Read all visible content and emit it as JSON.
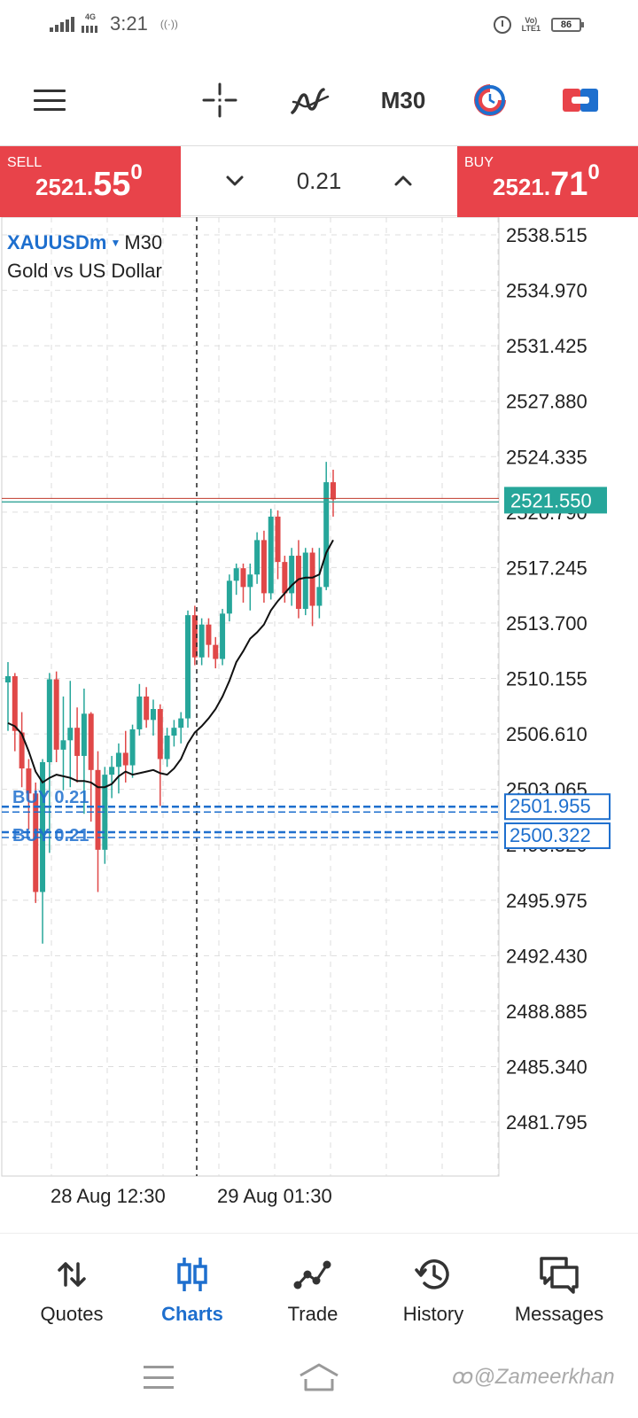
{
  "status_bar": {
    "network": "4G",
    "time": "3:21",
    "vibrate": "((·))",
    "volte": "VoLTE1",
    "battery": "86"
  },
  "toolbar": {
    "timeframe": "M30",
    "icons": [
      "menu-icon",
      "crosshair-icon",
      "indicators-icon",
      "timeframe",
      "objects-icon",
      "trade-panel-icon"
    ]
  },
  "price_bar": {
    "sell_label": "SELL",
    "sell_price_main": "2521.",
    "sell_price_big": "55",
    "sell_price_sup": "0",
    "buy_label": "BUY",
    "buy_price_main": "2521.",
    "buy_price_big": "71",
    "buy_price_sup": "0",
    "volume": "0.21",
    "color": "#e8434a"
  },
  "chart": {
    "symbol": "XAUUSDm",
    "timeframe": "M30",
    "description": "Gold vs US Dollar",
    "bid_label": "2521.550",
    "order_lines": [
      {
        "label": "BUY 0.21",
        "price_label": "2501.955"
      },
      {
        "label": "BUY 0.21",
        "price_label": "2500.322"
      }
    ],
    "x_labels": [
      "28 Aug 12:30",
      "29 Aug 01:30"
    ],
    "up_color": "#26a69a",
    "down_color": "#e04848",
    "order_color": "#1e6fce"
  },
  "chart_data": {
    "type": "candlestick",
    "title": "",
    "y_ticks": [
      2538.515,
      2534.97,
      2531.425,
      2527.88,
      2524.335,
      2520.79,
      2517.245,
      2513.7,
      2510.155,
      2506.61,
      2503.065,
      2499.52,
      2495.975,
      2492.43,
      2488.885,
      2485.34,
      2481.795
    ],
    "y_tick_labels": [
      "2538.515",
      "2534.970",
      "2531.425",
      "2527.880",
      "2524.335",
      "2520.790",
      "2517.245",
      "2513.700",
      "2510.155",
      "2506.610",
      "2503.065",
      "2499.520",
      "2495.975",
      "2492.430",
      "2488.885",
      "2485.340",
      "2481.795"
    ],
    "ylim": [
      2479.5,
      2541
    ],
    "x_labels": [
      "28 Aug 12:30",
      "29 Aug 01:30"
    ],
    "bid": 2521.55,
    "orders": [
      2501.955,
      2500.322
    ],
    "candles": [
      {
        "o": 2509.9,
        "h": 2511.2,
        "l": 2506.8,
        "c": 2510.3
      },
      {
        "o": 2510.3,
        "h": 2510.5,
        "l": 2505.5,
        "c": 2506.8
      },
      {
        "o": 2506.7,
        "h": 2508.0,
        "l": 2503.2,
        "c": 2504.4
      },
      {
        "o": 2504.4,
        "h": 2505.0,
        "l": 2500.5,
        "c": 2502.8
      },
      {
        "o": 2502.8,
        "h": 2503.5,
        "l": 2495.8,
        "c": 2496.5
      },
      {
        "o": 2496.5,
        "h": 2505.0,
        "l": 2493.2,
        "c": 2504.8
      },
      {
        "o": 2504.8,
        "h": 2510.5,
        "l": 2499.0,
        "c": 2510.1
      },
      {
        "o": 2510.1,
        "h": 2510.6,
        "l": 2504.8,
        "c": 2505.6
      },
      {
        "o": 2505.6,
        "h": 2509.0,
        "l": 2503.0,
        "c": 2506.2
      },
      {
        "o": 2506.2,
        "h": 2510.0,
        "l": 2503.2,
        "c": 2507.0
      },
      {
        "o": 2507.0,
        "h": 2508.3,
        "l": 2503.5,
        "c": 2505.2
      },
      {
        "o": 2505.2,
        "h": 2509.5,
        "l": 2501.5,
        "c": 2507.9
      },
      {
        "o": 2507.9,
        "h": 2508.0,
        "l": 2501.0,
        "c": 2504.3
      },
      {
        "o": 2504.3,
        "h": 2505.5,
        "l": 2496.5,
        "c": 2499.2
      },
      {
        "o": 2499.2,
        "h": 2504.5,
        "l": 2498.3,
        "c": 2504.0
      },
      {
        "o": 2504.0,
        "h": 2505.2,
        "l": 2502.5,
        "c": 2504.5
      },
      {
        "o": 2504.5,
        "h": 2506.0,
        "l": 2502.8,
        "c": 2505.4
      },
      {
        "o": 2505.4,
        "h": 2506.8,
        "l": 2503.5,
        "c": 2504.6
      },
      {
        "o": 2504.6,
        "h": 2507.2,
        "l": 2503.8,
        "c": 2506.9
      },
      {
        "o": 2506.9,
        "h": 2509.8,
        "l": 2506.5,
        "c": 2509.0
      },
      {
        "o": 2509.0,
        "h": 2509.6,
        "l": 2507.0,
        "c": 2507.5
      },
      {
        "o": 2507.5,
        "h": 2508.8,
        "l": 2506.5,
        "c": 2508.2
      },
      {
        "o": 2508.2,
        "h": 2508.5,
        "l": 2502.0,
        "c": 2505.0
      },
      {
        "o": 2505.0,
        "h": 2507.0,
        "l": 2504.5,
        "c": 2506.5
      },
      {
        "o": 2506.5,
        "h": 2507.5,
        "l": 2505.8,
        "c": 2507.0
      },
      {
        "o": 2507.0,
        "h": 2508.0,
        "l": 2506.0,
        "c": 2507.6
      },
      {
        "o": 2507.6,
        "h": 2514.5,
        "l": 2507.0,
        "c": 2514.2
      },
      {
        "o": 2514.2,
        "h": 2514.8,
        "l": 2511.0,
        "c": 2511.5
      },
      {
        "o": 2511.5,
        "h": 2514.0,
        "l": 2511.0,
        "c": 2513.6
      },
      {
        "o": 2513.6,
        "h": 2514.0,
        "l": 2511.5,
        "c": 2512.3
      },
      {
        "o": 2512.3,
        "h": 2512.8,
        "l": 2510.8,
        "c": 2511.4
      },
      {
        "o": 2511.4,
        "h": 2514.6,
        "l": 2511.0,
        "c": 2514.3
      },
      {
        "o": 2514.3,
        "h": 2516.8,
        "l": 2513.8,
        "c": 2516.4
      },
      {
        "o": 2516.4,
        "h": 2517.5,
        "l": 2515.5,
        "c": 2517.2
      },
      {
        "o": 2517.2,
        "h": 2517.5,
        "l": 2515.0,
        "c": 2516.0
      },
      {
        "o": 2516.0,
        "h": 2517.5,
        "l": 2514.5,
        "c": 2516.8
      },
      {
        "o": 2516.8,
        "h": 2519.5,
        "l": 2516.2,
        "c": 2519.0
      },
      {
        "o": 2519.0,
        "h": 2519.6,
        "l": 2515.0,
        "c": 2515.6
      },
      {
        "o": 2515.6,
        "h": 2521.0,
        "l": 2515.2,
        "c": 2520.5
      },
      {
        "o": 2520.5,
        "h": 2520.9,
        "l": 2516.5,
        "c": 2517.6
      },
      {
        "o": 2517.6,
        "h": 2518.0,
        "l": 2515.0,
        "c": 2515.6
      },
      {
        "o": 2515.6,
        "h": 2518.5,
        "l": 2514.8,
        "c": 2518.0
      },
      {
        "o": 2518.0,
        "h": 2519.0,
        "l": 2514.0,
        "c": 2514.6
      },
      {
        "o": 2514.6,
        "h": 2518.5,
        "l": 2514.2,
        "c": 2518.2
      },
      {
        "o": 2518.2,
        "h": 2518.5,
        "l": 2513.5,
        "c": 2514.8
      },
      {
        "o": 2514.8,
        "h": 2518.5,
        "l": 2514.0,
        "c": 2516.0
      },
      {
        "o": 2516.0,
        "h": 2524.0,
        "l": 2515.8,
        "c": 2522.7
      },
      {
        "o": 2522.7,
        "h": 2523.5,
        "l": 2520.5,
        "c": 2521.6
      }
    ],
    "moving_average": [
      2507.3,
      2507.1,
      2506.6,
      2505.5,
      2504.2,
      2503.5,
      2503.8,
      2504.0,
      2503.9,
      2503.8,
      2503.6,
      2503.6,
      2503.5,
      2503.2,
      2503.2,
      2503.4,
      2503.9,
      2504.2,
      2504.0,
      2504.1,
      2504.2,
      2504.3,
      2504.1,
      2504.0,
      2504.4,
      2505.0,
      2506.0,
      2506.7,
      2507.1,
      2507.6,
      2508.2,
      2509.0,
      2510.0,
      2511.2,
      2511.9,
      2512.7,
      2513.1,
      2513.6,
      2514.5,
      2515.1,
      2515.6,
      2516.1,
      2516.5,
      2516.6,
      2516.6,
      2516.8,
      2518.2,
      2519.0
    ]
  },
  "bottom_nav": {
    "items": [
      {
        "label": "Quotes",
        "icon": "quotes-icon"
      },
      {
        "label": "Charts",
        "icon": "charts-icon",
        "active": true
      },
      {
        "label": "Trade",
        "icon": "trade-icon"
      },
      {
        "label": "History",
        "icon": "history-icon"
      },
      {
        "label": "Messages",
        "icon": "messages-icon"
      }
    ],
    "active_color": "#1e6fce"
  },
  "system_nav": {
    "watermark": "ꝏ@Zameerkhan"
  }
}
